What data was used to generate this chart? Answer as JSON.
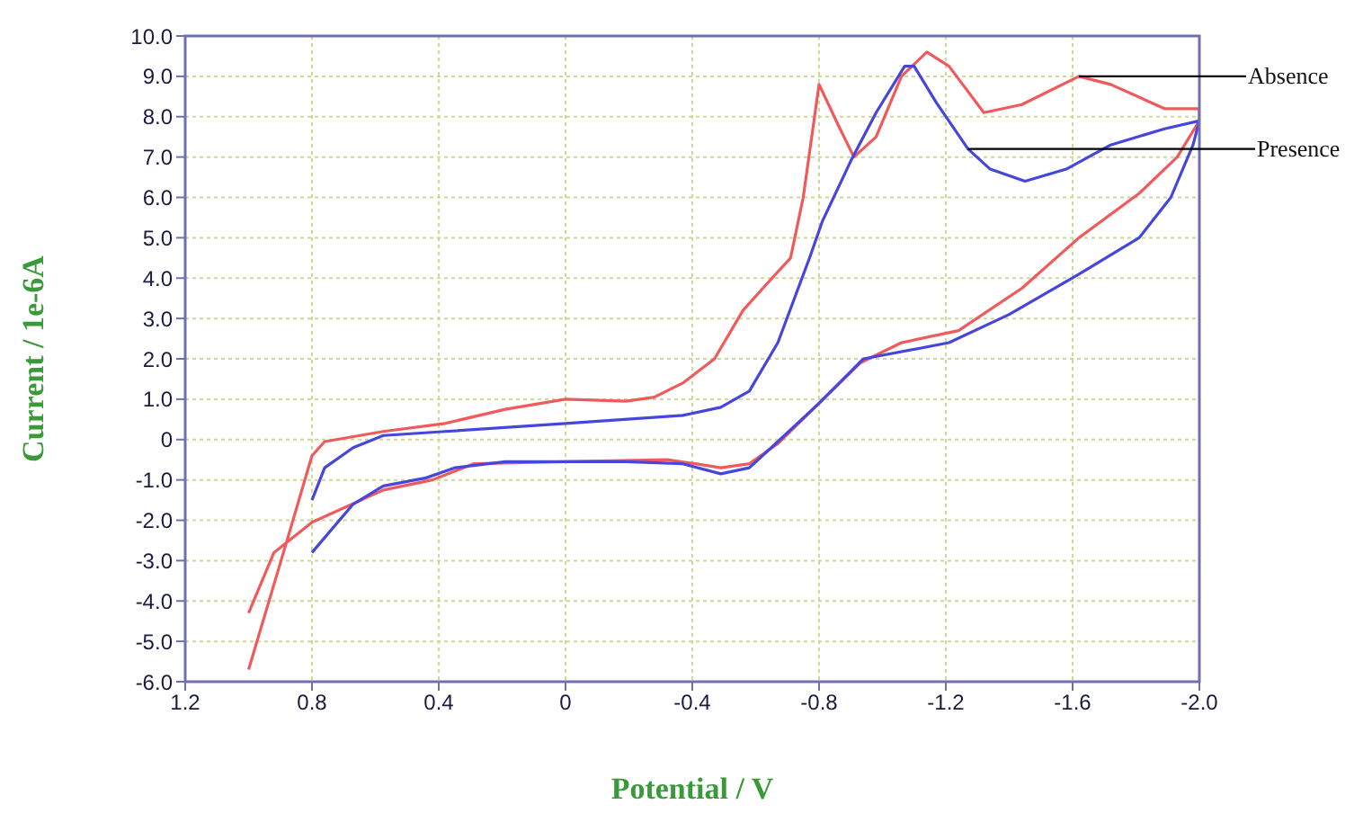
{
  "chart_data": {
    "type": "line",
    "xlabel": "Potential / V",
    "ylabel": "Current / 1e-6A",
    "xlim": [
      1.2,
      -2.0
    ],
    "xticks": [
      1.2,
      0.8,
      0.4,
      0,
      -0.4,
      -0.8,
      -1.2,
      -1.6,
      {
        "value": -2.0,
        "label": "-2.0"
      }
    ],
    "ylim": [
      -6,
      10
    ],
    "yticks": [
      {
        "value": -6,
        "label": "-6.0"
      },
      {
        "value": -5,
        "label": "-5.0"
      },
      {
        "value": -4,
        "label": "-4.0"
      },
      {
        "value": -3,
        "label": "-3.0"
      },
      {
        "value": -2,
        "label": "-2.0"
      },
      {
        "value": -1,
        "label": "-1.0"
      },
      0,
      {
        "value": 1,
        "label": "1.0"
      },
      {
        "value": 2,
        "label": "2.0"
      },
      {
        "value": 3,
        "label": "3.0"
      },
      {
        "value": 4,
        "label": "4.0"
      },
      {
        "value": 5,
        "label": "5.0"
      },
      {
        "value": 6,
        "label": "6.0"
      },
      {
        "value": 7,
        "label": "7.0"
      },
      {
        "value": 8,
        "label": "8.0"
      },
      {
        "value": 9,
        "label": "9.0"
      },
      {
        "value": 10,
        "label": "10.0"
      }
    ],
    "grid": true,
    "marker": "none",
    "line_style": "solid",
    "series": [
      {
        "name": "Absence",
        "color": "#f05a5a",
        "x": [
          1.0,
          0.89,
          0.8,
          0.76,
          0.575,
          0.38,
          0.19,
          0.0,
          -0.19,
          -0.28,
          -0.37,
          -0.47,
          -0.56,
          -0.64,
          -0.71,
          -0.75,
          -0.8,
          -0.86,
          -0.91,
          -0.98,
          -1.06,
          -1.14,
          -1.21,
          -1.32,
          -1.44,
          -1.62,
          -1.72,
          -1.89,
          -2.0,
          -2.0,
          -1.93,
          -1.81,
          -1.62,
          -1.44,
          -1.24,
          -1.06,
          -0.93,
          -0.8,
          -0.67,
          -0.58,
          -0.49,
          -0.41,
          -0.32,
          0.0,
          0.29,
          0.42,
          0.575,
          0.8,
          0.92,
          1.0
        ],
        "values": [
          -5.7,
          -2.8,
          -0.4,
          -0.05,
          0.2,
          0.4,
          0.75,
          1.0,
          0.95,
          1.05,
          1.4,
          2.0,
          3.2,
          3.9,
          4.5,
          6.0,
          8.8,
          7.8,
          7.0,
          7.5,
          9.0,
          9.6,
          9.25,
          8.1,
          8.3,
          9.0,
          8.8,
          8.2,
          8.2,
          7.9,
          7.0,
          6.1,
          5.0,
          3.75,
          2.7,
          2.4,
          1.9,
          0.9,
          -0.1,
          -0.6,
          -0.7,
          -0.6,
          -0.5,
          -0.55,
          -0.6,
          -1.0,
          -1.25,
          -2.05,
          -2.8,
          -4.3
        ]
      },
      {
        "name": "Presence",
        "color": "#4646dc",
        "x": [
          0.8,
          0.76,
          0.67,
          0.575,
          0.38,
          0.0,
          -0.37,
          -0.49,
          -0.58,
          -0.67,
          -0.77,
          -0.81,
          -0.9,
          -0.98,
          -1.07,
          -1.1,
          -1.17,
          -1.27,
          -1.34,
          -1.45,
          -1.58,
          -1.72,
          -1.89,
          -2.0,
          -1.98,
          -1.91,
          -1.81,
          -1.62,
          -1.4,
          -1.21,
          -0.94,
          -0.8,
          -0.67,
          -0.58,
          -0.49,
          -0.37,
          -0.19,
          0.19,
          0.35,
          0.44,
          0.575,
          0.67,
          0.8
        ],
        "values": [
          -1.5,
          -0.7,
          -0.2,
          0.1,
          0.2,
          0.4,
          0.6,
          0.8,
          1.2,
          2.4,
          4.5,
          5.4,
          6.9,
          8.1,
          9.25,
          9.25,
          8.35,
          7.2,
          6.7,
          6.4,
          6.7,
          7.3,
          7.7,
          7.9,
          7.3,
          6.0,
          5.0,
          4.1,
          3.1,
          2.4,
          2.0,
          0.9,
          -0.05,
          -0.7,
          -0.85,
          -0.6,
          -0.55,
          -0.55,
          -0.7,
          -0.95,
          -1.15,
          -1.6,
          -2.8
        ]
      }
    ]
  }
}
